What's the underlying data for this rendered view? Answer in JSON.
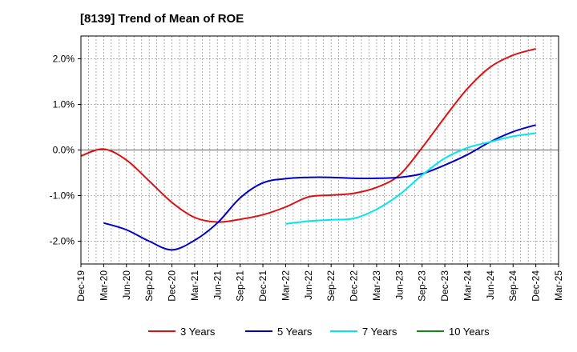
{
  "chart_data": {
    "type": "line",
    "title": "[8139]  Trend of Mean of ROE",
    "xlabel": "",
    "ylabel": "",
    "x": [
      "Dec-19",
      "Mar-20",
      "Jun-20",
      "Sep-20",
      "Dec-20",
      "Mar-21",
      "Jun-21",
      "Sep-21",
      "Dec-21",
      "Mar-22",
      "Jun-22",
      "Sep-22",
      "Dec-22",
      "Mar-23",
      "Jun-23",
      "Sep-23",
      "Dec-23",
      "Mar-24",
      "Jun-24",
      "Sep-24",
      "Dec-24",
      "Mar-25"
    ],
    "ylim": [
      -2.5,
      2.5
    ],
    "yticks": [
      2.0,
      1.0,
      0.0,
      -1.0,
      -2.0
    ],
    "ytick_labels": [
      "2.0%",
      "1.0%",
      "0.0%",
      "-1.0%",
      "-2.0%"
    ],
    "grid": true,
    "legend_position": "bottom",
    "series": [
      {
        "name": "3 Years",
        "color": "#dd1111",
        "values": [
          -0.13,
          0.02,
          -0.22,
          -0.68,
          -1.15,
          -1.48,
          -1.58,
          -1.52,
          -1.42,
          -1.25,
          -1.03,
          -0.99,
          -0.95,
          -0.82,
          -0.55,
          0.05,
          0.72,
          1.35,
          1.82,
          2.08,
          2.22,
          null
        ]
      },
      {
        "name": "5 Years",
        "color": "#0000cc",
        "values": [
          null,
          -1.6,
          -1.75,
          -2.0,
          -2.19,
          -1.98,
          -1.6,
          -1.05,
          -0.72,
          -0.63,
          -0.6,
          -0.6,
          -0.62,
          -0.62,
          -0.6,
          -0.52,
          -0.33,
          -0.1,
          0.18,
          0.4,
          0.55,
          null
        ]
      },
      {
        "name": "7 Years",
        "color": "#00e5ee",
        "values": [
          null,
          null,
          null,
          null,
          null,
          null,
          null,
          null,
          null,
          -1.62,
          -1.56,
          -1.53,
          -1.5,
          -1.3,
          -0.98,
          -0.55,
          -0.18,
          0.05,
          0.18,
          0.3,
          0.37,
          null
        ]
      },
      {
        "name": "10 Years",
        "color": "#118811",
        "values": [
          null,
          null,
          null,
          null,
          null,
          null,
          null,
          null,
          null,
          null,
          null,
          null,
          null,
          null,
          null,
          null,
          null,
          null,
          null,
          null,
          null,
          null
        ]
      }
    ]
  }
}
